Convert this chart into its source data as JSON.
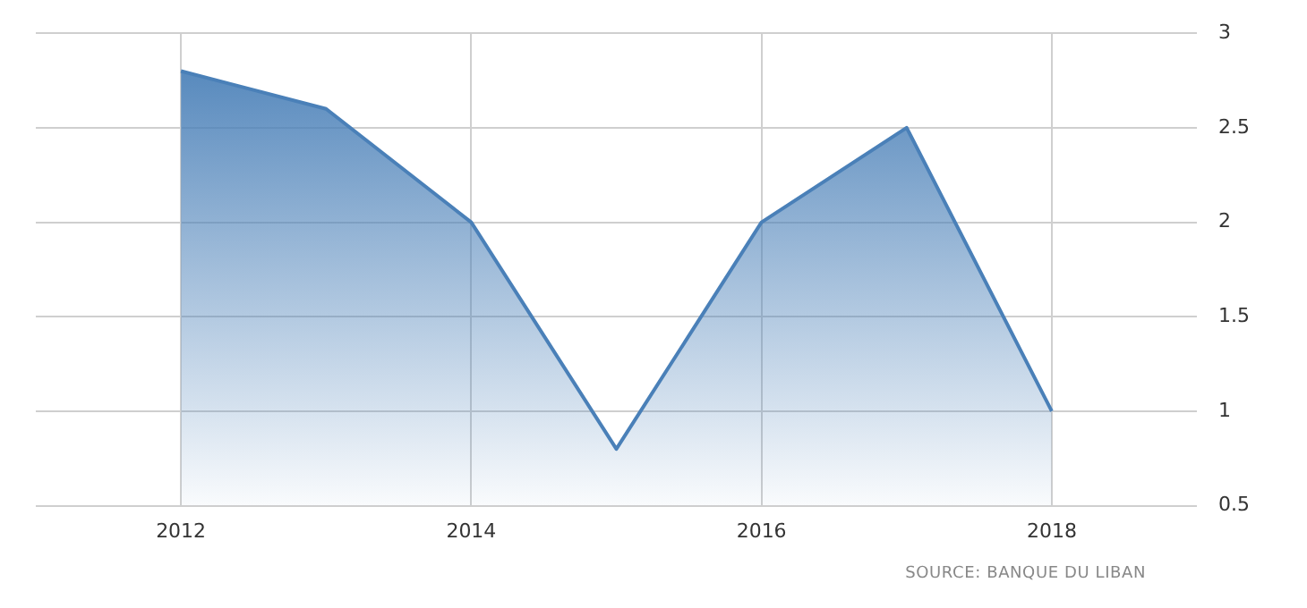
{
  "chart_data": {
    "type": "area",
    "x": [
      2012,
      2013,
      2014,
      2015,
      2016,
      2017,
      2018
    ],
    "series": [
      {
        "color": "#4a80b8",
        "values": [
          2.8,
          2.6,
          2.0,
          0.8,
          2.0,
          2.5,
          1.0
        ]
      }
    ],
    "xlim": [
      2011,
      2019
    ],
    "xticks": [
      2012,
      2014,
      2016,
      2018
    ],
    "ylim": [
      0.5,
      3
    ],
    "yticks": [
      0.5,
      1,
      1.5,
      2,
      2.5,
      3
    ],
    "grid": true,
    "annotations": [
      "SOURCE: BANQUE DU LIBAN"
    ]
  }
}
